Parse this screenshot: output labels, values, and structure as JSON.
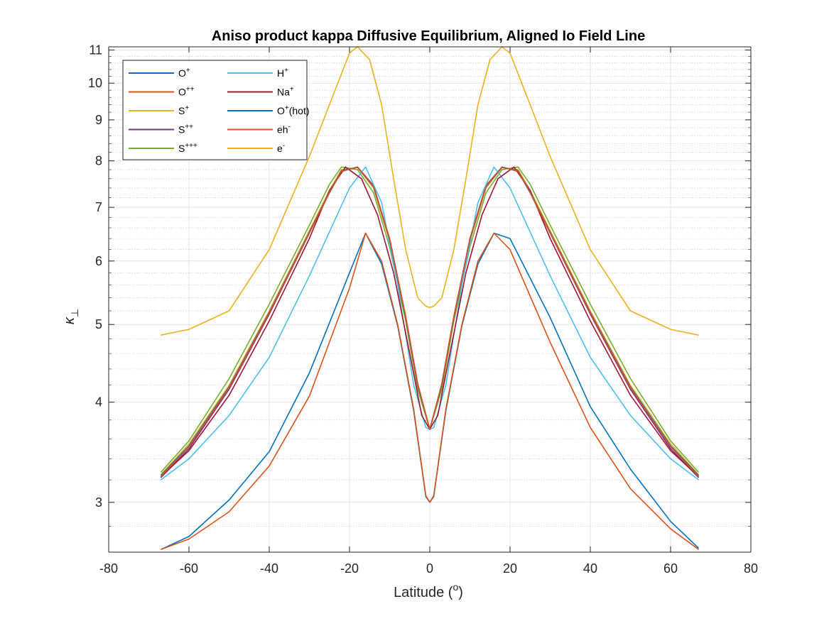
{
  "chart_data": {
    "type": "line",
    "title": "Aniso product kappa Diffusive Equilibrium, Aligned Io Field Line",
    "xlabel": "Latitude (",
    "xlabel_sup": "o",
    "xlabel_end": ")",
    "ylabel": "κ",
    "ylabel_sub": "⊥",
    "xlim": [
      -80,
      80
    ],
    "ylim": [
      2.6,
      11.1
    ],
    "yscale": "log",
    "xticks": [
      -80,
      -60,
      -40,
      -20,
      0,
      20,
      40,
      60,
      80
    ],
    "yticks": [
      3,
      4,
      5,
      6,
      7,
      8,
      9,
      10,
      11
    ],
    "grid": true,
    "minor_grid": true,
    "legend_position": "top-left",
    "series": [
      {
        "name": "O",
        "sup": "+",
        "color": "#0072BD",
        "x": [
          -67,
          -60,
          -50,
          -40,
          -30,
          -20,
          -16,
          -12,
          -8,
          -4,
          -1,
          0,
          1,
          4,
          8,
          12,
          16,
          20,
          30,
          40,
          50,
          60,
          67
        ],
        "y": [
          2.62,
          2.72,
          3.02,
          3.47,
          4.35,
          5.8,
          6.5,
          5.95,
          4.98,
          3.9,
          3.05,
          3.0,
          3.05,
          3.9,
          4.98,
          5.95,
          6.5,
          6.4,
          5.1,
          3.95,
          3.3,
          2.84,
          2.63
        ]
      },
      {
        "name": "O",
        "sup": "++",
        "color": "#D95319",
        "x": [
          -67,
          -60,
          -50,
          -40,
          -30,
          -20,
          -16,
          -12,
          -8,
          -4,
          -1,
          0,
          1,
          4,
          8,
          12,
          16,
          20,
          30,
          40,
          50,
          60,
          67
        ],
        "y": [
          2.62,
          2.7,
          2.92,
          3.33,
          4.07,
          5.55,
          6.5,
          6.0,
          5.0,
          3.92,
          3.06,
          3.0,
          3.06,
          3.92,
          5.0,
          6.0,
          6.5,
          6.2,
          4.75,
          3.72,
          3.12,
          2.78,
          2.62
        ]
      },
      {
        "name": "S",
        "sup": "+",
        "color": "#EDB120",
        "x": [
          -67,
          -60,
          -50,
          -40,
          -30,
          -25,
          -22,
          -18,
          -14,
          -10,
          -6,
          -3,
          0,
          3,
          6,
          10,
          14,
          18,
          22,
          25,
          30,
          40,
          50,
          60,
          67
        ],
        "y": [
          3.25,
          3.55,
          4.2,
          5.2,
          6.55,
          7.35,
          7.8,
          7.85,
          7.4,
          6.35,
          5.1,
          4.2,
          3.7,
          4.2,
          5.1,
          6.35,
          7.4,
          7.85,
          7.8,
          7.35,
          6.55,
          5.2,
          4.2,
          3.55,
          3.25
        ]
      },
      {
        "name": "S",
        "sup": "++",
        "color": "#7E2F8E",
        "x": [
          -67,
          -60,
          -50,
          -40,
          -30,
          -25,
          -22,
          -18,
          -14,
          -10,
          -6,
          -3,
          0,
          3,
          6,
          10,
          14,
          18,
          22,
          25,
          30,
          40,
          50,
          60,
          67
        ],
        "y": [
          3.22,
          3.5,
          4.15,
          5.15,
          6.5,
          7.3,
          7.76,
          7.86,
          7.45,
          6.4,
          5.12,
          4.22,
          3.7,
          4.22,
          5.12,
          6.4,
          7.45,
          7.86,
          7.76,
          7.3,
          6.5,
          5.15,
          4.15,
          3.5,
          3.22
        ]
      },
      {
        "name": "S",
        "sup": "+++",
        "color": "#77AC30",
        "x": [
          -67,
          -60,
          -50,
          -40,
          -30,
          -25,
          -22,
          -18,
          -14,
          -10,
          -6,
          -3,
          0,
          3,
          6,
          10,
          14,
          18,
          22,
          25,
          30,
          40,
          50,
          60,
          67
        ],
        "y": [
          3.27,
          3.58,
          4.28,
          5.3,
          6.65,
          7.48,
          7.86,
          7.8,
          7.3,
          6.25,
          5.05,
          4.15,
          3.7,
          4.15,
          5.05,
          6.25,
          7.3,
          7.8,
          7.86,
          7.48,
          6.65,
          5.3,
          4.28,
          3.58,
          3.27
        ]
      },
      {
        "name": "H",
        "sup": "+",
        "color": "#4DBEEE",
        "x": [
          -67,
          -60,
          -50,
          -40,
          -30,
          -20,
          -16,
          -12,
          -8,
          -4,
          -1,
          0,
          1,
          4,
          8,
          12,
          16,
          20,
          30,
          40,
          50,
          60,
          67
        ],
        "y": [
          3.2,
          3.4,
          3.85,
          4.55,
          5.75,
          7.4,
          7.86,
          7.1,
          5.6,
          4.2,
          3.72,
          3.7,
          3.72,
          4.2,
          5.6,
          7.1,
          7.86,
          7.4,
          5.75,
          4.55,
          3.85,
          3.4,
          3.2
        ]
      },
      {
        "name": "Na",
        "sup": "+",
        "color": "#A2142F",
        "x": [
          -67,
          -60,
          -50,
          -40,
          -30,
          -25,
          -21,
          -17,
          -13,
          -9,
          -5,
          -2,
          0,
          2,
          5,
          9,
          13,
          17,
          21,
          25,
          30,
          40,
          50,
          60,
          67
        ],
        "y": [
          3.23,
          3.48,
          4.08,
          5.05,
          6.4,
          7.35,
          7.86,
          7.6,
          6.85,
          5.8,
          4.6,
          3.85,
          3.7,
          3.85,
          4.6,
          5.8,
          6.85,
          7.6,
          7.86,
          7.35,
          6.4,
          5.05,
          4.08,
          3.48,
          3.23
        ]
      },
      {
        "name": "O",
        "sup": "+",
        "suffix": "(hot)",
        "color": "#0072BD",
        "x": [
          -67,
          -60,
          -50,
          -40,
          -30,
          -25,
          -22,
          -18,
          -14,
          -10,
          -6,
          -3,
          0,
          3,
          6,
          10,
          14,
          18,
          22,
          25,
          30,
          40,
          50,
          60,
          67
        ],
        "y": [
          3.24,
          3.53,
          4.18,
          5.18,
          6.52,
          7.32,
          7.78,
          7.85,
          7.42,
          6.38,
          5.1,
          4.2,
          3.7,
          4.2,
          5.1,
          6.38,
          7.42,
          7.85,
          7.78,
          7.32,
          6.52,
          5.18,
          4.18,
          3.53,
          3.24
        ]
      },
      {
        "name": "eh",
        "sup": "-",
        "color": "#D95319",
        "x": [
          -67,
          -60,
          -50,
          -40,
          -30,
          -25,
          -22,
          -18,
          -14,
          -10,
          -6,
          -3,
          0,
          3,
          6,
          10,
          14,
          18,
          22,
          25,
          30,
          40,
          50,
          60,
          67
        ],
        "y": [
          3.23,
          3.52,
          4.17,
          5.17,
          6.51,
          7.31,
          7.77,
          7.85,
          7.43,
          6.39,
          5.11,
          4.21,
          3.7,
          4.21,
          5.11,
          6.39,
          7.43,
          7.85,
          7.77,
          7.31,
          6.51,
          5.17,
          4.17,
          3.52,
          3.23
        ]
      },
      {
        "name": "e",
        "sup": "-",
        "color": "#EDB120",
        "x": [
          -67,
          -60,
          -50,
          -40,
          -30,
          -25,
          -20,
          -18,
          -15,
          -12,
          -9,
          -6,
          -3,
          -1,
          0,
          1,
          3,
          6,
          9,
          12,
          15,
          18,
          20,
          25,
          30,
          40,
          50,
          60,
          67
        ],
        "y": [
          4.85,
          4.93,
          5.2,
          6.2,
          8.1,
          9.4,
          10.9,
          11.1,
          10.7,
          9.4,
          7.6,
          6.2,
          5.4,
          5.27,
          5.25,
          5.27,
          5.4,
          6.2,
          7.6,
          9.4,
          10.7,
          11.1,
          10.9,
          9.4,
          8.1,
          6.2,
          5.2,
          4.93,
          4.85
        ]
      }
    ]
  }
}
